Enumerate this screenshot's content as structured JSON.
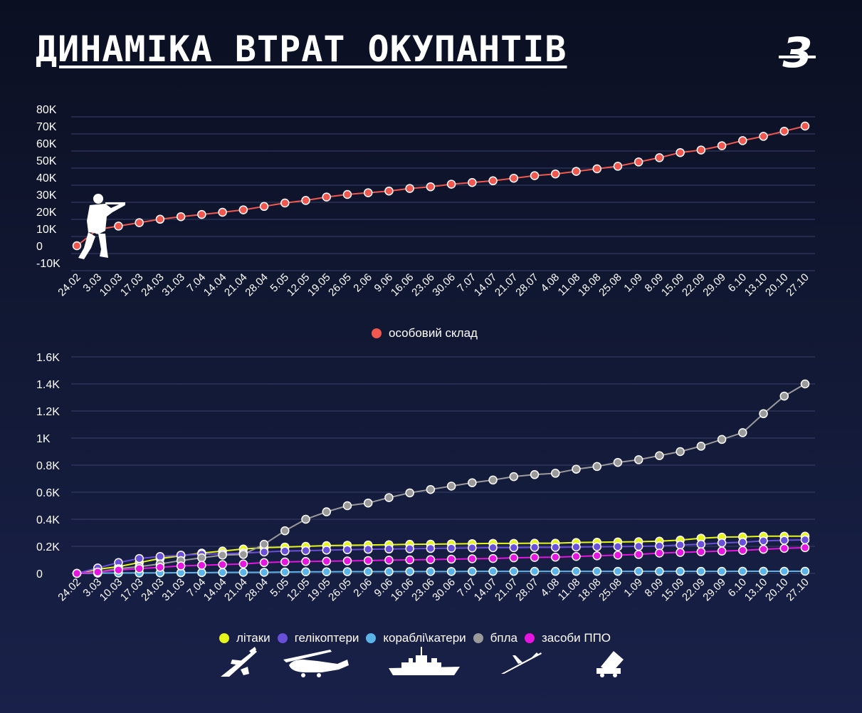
{
  "title": "ДИНАМІКА ВТРАТ ОКУПАНТІВ",
  "logo": {
    "text": "З"
  },
  "colors": {
    "personnel": "#f0584f",
    "aircraft": "#e6f51a",
    "helicopters": "#6a4fd8",
    "ships": "#5ab4e8",
    "drones": "#9a9a9a",
    "airdefense": "#e615e0",
    "grid": "#3a4068"
  },
  "dates": [
    "24.02",
    "3.03",
    "10.03",
    "17.03",
    "24.03",
    "31.03",
    "7.04",
    "14.04",
    "21.04",
    "28.04",
    "5.05",
    "12.05",
    "19.05",
    "26.05",
    "2.06",
    "9.06",
    "16.06",
    "23.06",
    "30.06",
    "7.07",
    "14.07",
    "21.07",
    "28.07",
    "4.08",
    "11.08",
    "18.08",
    "25.08",
    "1.09",
    "8.09",
    "15.09",
    "22.09",
    "29.09",
    "6.10",
    "13.10",
    "20.10",
    "27.10"
  ],
  "chart_data": [
    {
      "type": "line",
      "yticks": [
        "-10K",
        "0",
        "10K",
        "20K",
        "30K",
        "40K",
        "50K",
        "60K",
        "70K",
        "80K"
      ],
      "ylim": [
        -10000,
        80000
      ],
      "grid": true,
      "legend_position": "bottom-center",
      "series": [
        {
          "name": "особовий склад",
          "color": "#f0584f",
          "values": [
            0,
            9500,
            11500,
            13500,
            15500,
            17000,
            18300,
            19600,
            21000,
            23000,
            25000,
            26500,
            28500,
            30000,
            31000,
            32000,
            33500,
            34500,
            36000,
            37000,
            38000,
            39500,
            41000,
            42000,
            43500,
            45000,
            46500,
            49000,
            51500,
            54500,
            56000,
            58500,
            61500,
            64000,
            67000,
            70000
          ]
        }
      ]
    },
    {
      "type": "line",
      "yticks": [
        "0",
        "0.2K",
        "0.4K",
        "0.6K",
        "0.8K",
        "1K",
        "1.2K",
        "1.4K",
        "1.6K"
      ],
      "ylim": [
        0,
        1600
      ],
      "grid": true,
      "legend_position": "bottom-center",
      "series": [
        {
          "name": "літаки",
          "color": "#e6f51a",
          "values": [
            0,
            30,
            50,
            80,
            110,
            130,
            150,
            165,
            180,
            190,
            195,
            200,
            205,
            208,
            210,
            212,
            215,
            216,
            218,
            220,
            222,
            222,
            223,
            223,
            228,
            230,
            232,
            234,
            238,
            246,
            260,
            268,
            270,
            275,
            275,
            275
          ]
        },
        {
          "name": "гелікоптери",
          "color": "#6a4fd8",
          "values": [
            0,
            40,
            80,
            110,
            125,
            135,
            142,
            145,
            150,
            158,
            165,
            168,
            172,
            175,
            178,
            180,
            182,
            184,
            186,
            188,
            190,
            190,
            192,
            192,
            195,
            197,
            198,
            200,
            202,
            210,
            215,
            225,
            230,
            240,
            245,
            248
          ]
        },
        {
          "name": "кораблі\\катери",
          "color": "#5ab4e8",
          "values": [
            0,
            2,
            3,
            3,
            4,
            5,
            6,
            7,
            8,
            8,
            10,
            12,
            12,
            13,
            13,
            13,
            14,
            14,
            14,
            15,
            15,
            15,
            15,
            15,
            15,
            15,
            15,
            15,
            15,
            15,
            15,
            15,
            16,
            16,
            16,
            16
          ]
        },
        {
          "name": "бпла",
          "color": "#9a9a9a",
          "values": [
            0,
            10,
            35,
            50,
            70,
            95,
            115,
            135,
            140,
            215,
            315,
            400,
            455,
            500,
            520,
            560,
            595,
            620,
            645,
            670,
            690,
            715,
            730,
            740,
            770,
            790,
            820,
            840,
            870,
            900,
            940,
            990,
            1040,
            1180,
            1310,
            1400
          ]
        },
        {
          "name": "засоби ППО",
          "color": "#e615e0",
          "values": [
            0,
            10,
            25,
            35,
            45,
            55,
            60,
            65,
            70,
            80,
            85,
            88,
            90,
            92,
            95,
            98,
            100,
            102,
            105,
            108,
            110,
            115,
            118,
            120,
            125,
            130,
            135,
            140,
            150,
            155,
            160,
            165,
            170,
            178,
            185,
            190
          ]
        }
      ]
    }
  ],
  "icons": [
    "soldier-icon",
    "airplane-icon",
    "helicopter-icon",
    "ship-icon",
    "drone-icon",
    "air-defense-icon"
  ]
}
